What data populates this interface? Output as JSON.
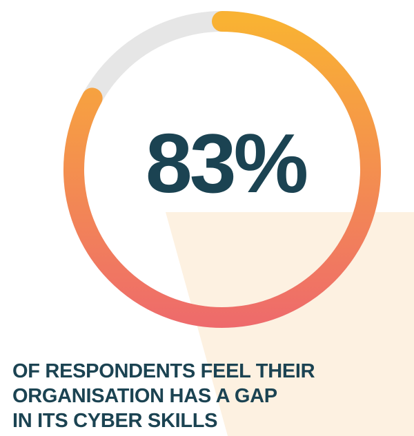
{
  "chart_data": {
    "type": "gauge",
    "values": [
      83
    ],
    "value_labels": [
      "83%"
    ],
    "ylim": [
      0,
      100
    ],
    "colors": [
      "#f9b233",
      "#ee6a6c"
    ],
    "track_color": "#e6e6e6",
    "caption": [
      "OF RESPONDENTS FEEL THEIR",
      "ORGANISATION HAS A GAP",
      "IN ITS CYBER SKILLS"
    ]
  }
}
